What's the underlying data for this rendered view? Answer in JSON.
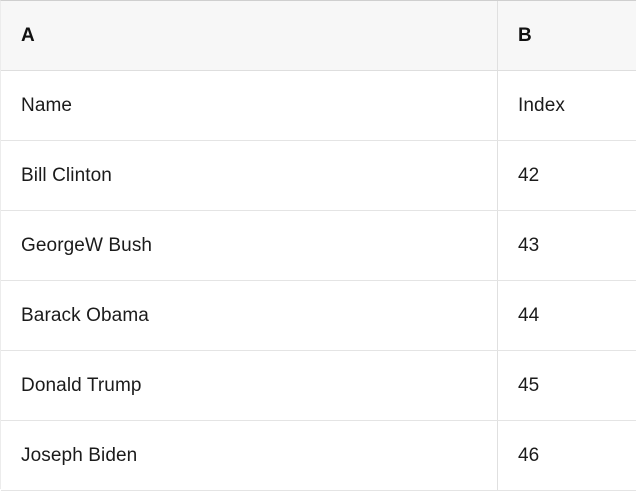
{
  "colors": {
    "header_background": "#f7f7f7",
    "row_background": "#ffffff",
    "grid_line": "#e2e2e2",
    "top_border": "#cfcfcf",
    "text": "#1b1b1b"
  },
  "table": {
    "column_headers": [
      "A",
      "B"
    ],
    "rows": [
      {
        "a": "Name",
        "b": "Index"
      },
      {
        "a": "Bill Clinton",
        "b": "42"
      },
      {
        "a": "GeorgeW Bush",
        "b": "43"
      },
      {
        "a": "Barack Obama",
        "b": "44"
      },
      {
        "a": "Donald Trump",
        "b": "45"
      },
      {
        "a": "Joseph Biden",
        "b": "46"
      }
    ]
  }
}
